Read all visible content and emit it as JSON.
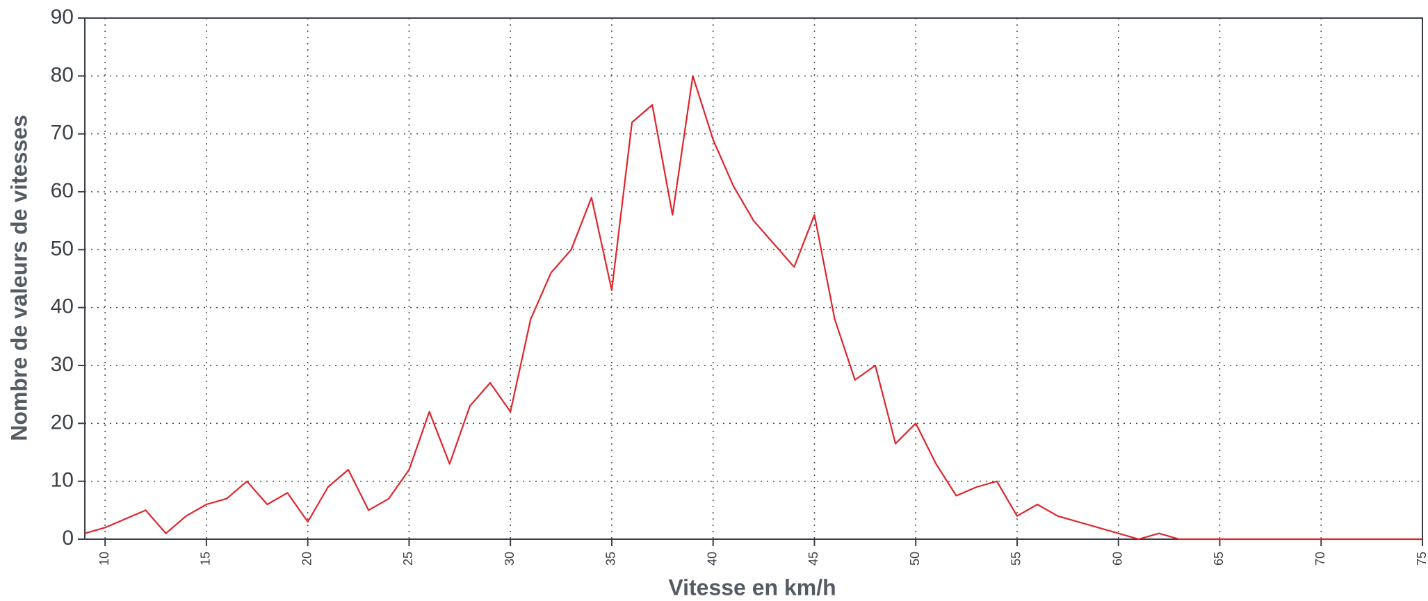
{
  "chart_data": {
    "type": "line",
    "x_label": "Vitesse en km/h",
    "y_label": "Nombre de valeurs de vitesses",
    "x": [
      9,
      10,
      11,
      12,
      13,
      14,
      15,
      16,
      17,
      18,
      19,
      20,
      21,
      22,
      23,
      24,
      25,
      26,
      27,
      28,
      29,
      30,
      31,
      32,
      33,
      34,
      35,
      36,
      37,
      38,
      39,
      40,
      41,
      42,
      43,
      44,
      45,
      46,
      47,
      48,
      49,
      50,
      51,
      52,
      53,
      54,
      55,
      56,
      57,
      58,
      59,
      60,
      61,
      62,
      63,
      64,
      65,
      66,
      67,
      68,
      69,
      70,
      71,
      72,
      73,
      74,
      75
    ],
    "values": [
      1,
      2,
      3.5,
      5,
      1,
      4,
      6,
      7,
      10,
      6,
      8,
      3,
      9,
      12,
      5,
      7,
      12,
      22,
      13,
      23,
      27,
      22,
      38,
      46,
      50,
      59,
      43,
      72,
      75,
      56,
      80,
      69,
      61,
      55,
      51,
      47,
      56,
      38,
      27.5,
      30,
      16.5,
      20,
      13,
      7.5,
      9,
      10,
      4,
      6,
      4,
      3,
      2,
      1,
      0,
      1,
      0,
      0,
      0,
      0,
      0,
      0,
      0,
      0,
      0,
      0,
      0,
      0,
      0
    ],
    "color": "#e0242a",
    "xlim": [
      9,
      75
    ],
    "ylim": [
      0,
      90
    ],
    "xticks": [
      10,
      15,
      20,
      25,
      30,
      35,
      40,
      45,
      50,
      55,
      60,
      65,
      70,
      75
    ],
    "yticks": [
      0,
      10,
      20,
      30,
      40,
      50,
      60,
      70,
      80,
      90
    ],
    "grid": true
  }
}
